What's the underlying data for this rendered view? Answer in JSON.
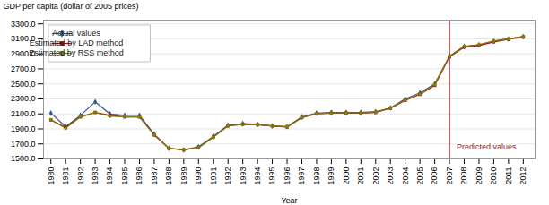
{
  "chart_data": {
    "type": "line",
    "xlabel": "Year",
    "ylabel": "GDP per capita (dollar of 2005 prices)",
    "x": [
      1980,
      1981,
      1982,
      1983,
      1984,
      1985,
      1986,
      1987,
      1988,
      1989,
      1990,
      1991,
      1992,
      1993,
      1994,
      1995,
      1996,
      1997,
      1998,
      1999,
      2000,
      2001,
      2002,
      2003,
      2004,
      2005,
      2006,
      2007,
      2008,
      2009,
      2010,
      2011,
      2012
    ],
    "series": [
      {
        "name": "Actual values",
        "color": "#2f5496",
        "marker": "diamond",
        "values": [
          2110,
          1930,
          2080,
          2260,
          2100,
          2080,
          2080,
          1830,
          1640,
          1620,
          1660,
          1800,
          1950,
          1970,
          1960,
          1940,
          1930,
          2060,
          2110,
          2120,
          2120,
          2120,
          2130,
          2180,
          2300,
          2380,
          2500,
          2870,
          3000,
          3020,
          3070,
          3100,
          3130
        ]
      },
      {
        "name": "Estimated by LAD method",
        "color": "#c00000",
        "marker": "square",
        "values": [
          2020,
          1920,
          2060,
          2120,
          2080,
          2060,
          2060,
          1820,
          1640,
          1620,
          1650,
          1790,
          1940,
          1960,
          1955,
          1938,
          1925,
          2050,
          2100,
          2110,
          2110,
          2110,
          2120,
          2175,
          2280,
          2360,
          2480,
          2860,
          2990,
          3010,
          3060,
          3095,
          3125
        ]
      },
      {
        "name": "Estimated by RSS method",
        "color": "#7f7f00",
        "marker": "circle",
        "values": [
          2020,
          1910,
          2060,
          2120,
          2070,
          2060,
          2060,
          1820,
          1640,
          1620,
          1650,
          1790,
          1940,
          1960,
          1955,
          1940,
          1928,
          2053,
          2103,
          2113,
          2113,
          2113,
          2123,
          2178,
          2285,
          2365,
          2490,
          2870,
          3000,
          3025,
          3070,
          3100,
          3130
        ]
      }
    ],
    "xlim": [
      1979.5,
      2012.8
    ],
    "xticks": [
      1980,
      1981,
      1982,
      1983,
      1984,
      1985,
      1986,
      1987,
      1988,
      1989,
      1990,
      1991,
      1992,
      1993,
      1994,
      1995,
      1996,
      1997,
      1998,
      1999,
      2000,
      2001,
      2002,
      2003,
      2004,
      2005,
      2006,
      2007,
      2008,
      2009,
      2010,
      2011,
      2012
    ],
    "ylim": [
      1500,
      3350
    ],
    "yticks": [
      {
        "value": 1500,
        "label": "1500.0"
      },
      {
        "value": 1700,
        "label": "1700.0"
      },
      {
        "value": 1900,
        "label": "1900.0"
      },
      {
        "value": 2100,
        "label": "2100.0"
      },
      {
        "value": 2300,
        "label": "2300.0"
      },
      {
        "value": 2500,
        "label": "2500.0"
      },
      {
        "value": 2700,
        "label": "2700.0"
      },
      {
        "value": 2900,
        "label": "2900.0"
      },
      {
        "value": 3100,
        "label": "3100.0"
      },
      {
        "value": 3300,
        "label": "3300.0"
      }
    ],
    "grid": true,
    "legend": "upper left",
    "vline": {
      "x": 2007,
      "color": "#8b1a1a"
    },
    "annotations": [
      {
        "text": "Predicted values",
        "x": 2009.5,
        "y": 1620,
        "color": "#8b1a1a"
      }
    ]
  }
}
